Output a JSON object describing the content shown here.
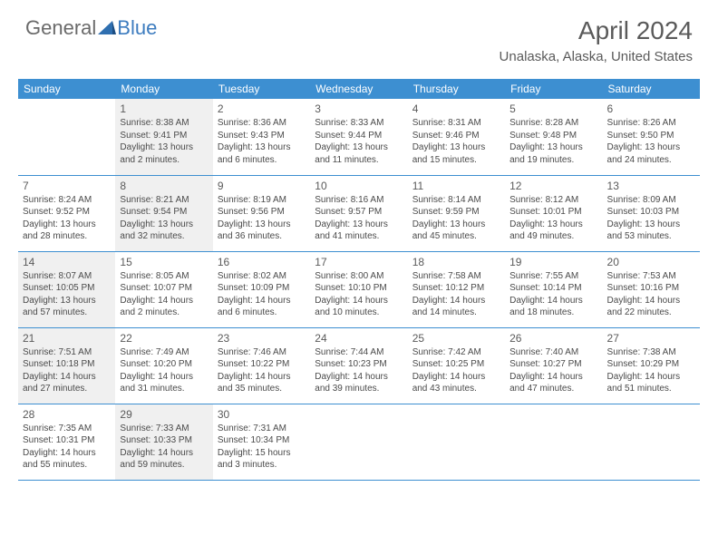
{
  "brand": {
    "part1": "General",
    "part2": "Blue"
  },
  "title": "April 2024",
  "location": "Unalaska, Alaska, United States",
  "colors": {
    "header_bg": "#3d8fd1",
    "header_fg": "#ffffff",
    "shaded_bg": "#f0f0f0",
    "rule": "#3d8fd1",
    "text": "#4a4a4a",
    "title": "#5a5a5a"
  },
  "day_labels": [
    "Sunday",
    "Monday",
    "Tuesday",
    "Wednesday",
    "Thursday",
    "Friday",
    "Saturday"
  ],
  "weeks": [
    [
      {
        "day": "",
        "shaded": false
      },
      {
        "day": "1",
        "shaded": true,
        "sunrise": "8:38 AM",
        "sunset": "9:41 PM",
        "daylight": "13 hours and 2 minutes."
      },
      {
        "day": "2",
        "shaded": false,
        "sunrise": "8:36 AM",
        "sunset": "9:43 PM",
        "daylight": "13 hours and 6 minutes."
      },
      {
        "day": "3",
        "shaded": false,
        "sunrise": "8:33 AM",
        "sunset": "9:44 PM",
        "daylight": "13 hours and 11 minutes."
      },
      {
        "day": "4",
        "shaded": false,
        "sunrise": "8:31 AM",
        "sunset": "9:46 PM",
        "daylight": "13 hours and 15 minutes."
      },
      {
        "day": "5",
        "shaded": false,
        "sunrise": "8:28 AM",
        "sunset": "9:48 PM",
        "daylight": "13 hours and 19 minutes."
      },
      {
        "day": "6",
        "shaded": false,
        "sunrise": "8:26 AM",
        "sunset": "9:50 PM",
        "daylight": "13 hours and 24 minutes."
      }
    ],
    [
      {
        "day": "7",
        "shaded": false,
        "sunrise": "8:24 AM",
        "sunset": "9:52 PM",
        "daylight": "13 hours and 28 minutes."
      },
      {
        "day": "8",
        "shaded": true,
        "sunrise": "8:21 AM",
        "sunset": "9:54 PM",
        "daylight": "13 hours and 32 minutes."
      },
      {
        "day": "9",
        "shaded": false,
        "sunrise": "8:19 AM",
        "sunset": "9:56 PM",
        "daylight": "13 hours and 36 minutes."
      },
      {
        "day": "10",
        "shaded": false,
        "sunrise": "8:16 AM",
        "sunset": "9:57 PM",
        "daylight": "13 hours and 41 minutes."
      },
      {
        "day": "11",
        "shaded": false,
        "sunrise": "8:14 AM",
        "sunset": "9:59 PM",
        "daylight": "13 hours and 45 minutes."
      },
      {
        "day": "12",
        "shaded": false,
        "sunrise": "8:12 AM",
        "sunset": "10:01 PM",
        "daylight": "13 hours and 49 minutes."
      },
      {
        "day": "13",
        "shaded": false,
        "sunrise": "8:09 AM",
        "sunset": "10:03 PM",
        "daylight": "13 hours and 53 minutes."
      }
    ],
    [
      {
        "day": "14",
        "shaded": true,
        "sunrise": "8:07 AM",
        "sunset": "10:05 PM",
        "daylight": "13 hours and 57 minutes."
      },
      {
        "day": "15",
        "shaded": false,
        "sunrise": "8:05 AM",
        "sunset": "10:07 PM",
        "daylight": "14 hours and 2 minutes."
      },
      {
        "day": "16",
        "shaded": false,
        "sunrise": "8:02 AM",
        "sunset": "10:09 PM",
        "daylight": "14 hours and 6 minutes."
      },
      {
        "day": "17",
        "shaded": false,
        "sunrise": "8:00 AM",
        "sunset": "10:10 PM",
        "daylight": "14 hours and 10 minutes."
      },
      {
        "day": "18",
        "shaded": false,
        "sunrise": "7:58 AM",
        "sunset": "10:12 PM",
        "daylight": "14 hours and 14 minutes."
      },
      {
        "day": "19",
        "shaded": false,
        "sunrise": "7:55 AM",
        "sunset": "10:14 PM",
        "daylight": "14 hours and 18 minutes."
      },
      {
        "day": "20",
        "shaded": false,
        "sunrise": "7:53 AM",
        "sunset": "10:16 PM",
        "daylight": "14 hours and 22 minutes."
      }
    ],
    [
      {
        "day": "21",
        "shaded": true,
        "sunrise": "7:51 AM",
        "sunset": "10:18 PM",
        "daylight": "14 hours and 27 minutes."
      },
      {
        "day": "22",
        "shaded": false,
        "sunrise": "7:49 AM",
        "sunset": "10:20 PM",
        "daylight": "14 hours and 31 minutes."
      },
      {
        "day": "23",
        "shaded": false,
        "sunrise": "7:46 AM",
        "sunset": "10:22 PM",
        "daylight": "14 hours and 35 minutes."
      },
      {
        "day": "24",
        "shaded": false,
        "sunrise": "7:44 AM",
        "sunset": "10:23 PM",
        "daylight": "14 hours and 39 minutes."
      },
      {
        "day": "25",
        "shaded": false,
        "sunrise": "7:42 AM",
        "sunset": "10:25 PM",
        "daylight": "14 hours and 43 minutes."
      },
      {
        "day": "26",
        "shaded": false,
        "sunrise": "7:40 AM",
        "sunset": "10:27 PM",
        "daylight": "14 hours and 47 minutes."
      },
      {
        "day": "27",
        "shaded": false,
        "sunrise": "7:38 AM",
        "sunset": "10:29 PM",
        "daylight": "14 hours and 51 minutes."
      }
    ],
    [
      {
        "day": "28",
        "shaded": false,
        "sunrise": "7:35 AM",
        "sunset": "10:31 PM",
        "daylight": "14 hours and 55 minutes."
      },
      {
        "day": "29",
        "shaded": true,
        "sunrise": "7:33 AM",
        "sunset": "10:33 PM",
        "daylight": "14 hours and 59 minutes."
      },
      {
        "day": "30",
        "shaded": false,
        "sunrise": "7:31 AM",
        "sunset": "10:34 PM",
        "daylight": "15 hours and 3 minutes."
      },
      {
        "day": "",
        "shaded": false
      },
      {
        "day": "",
        "shaded": false
      },
      {
        "day": "",
        "shaded": false
      },
      {
        "day": "",
        "shaded": false
      }
    ]
  ],
  "labels": {
    "sunrise": "Sunrise:",
    "sunset": "Sunset:",
    "daylight": "Daylight:"
  }
}
